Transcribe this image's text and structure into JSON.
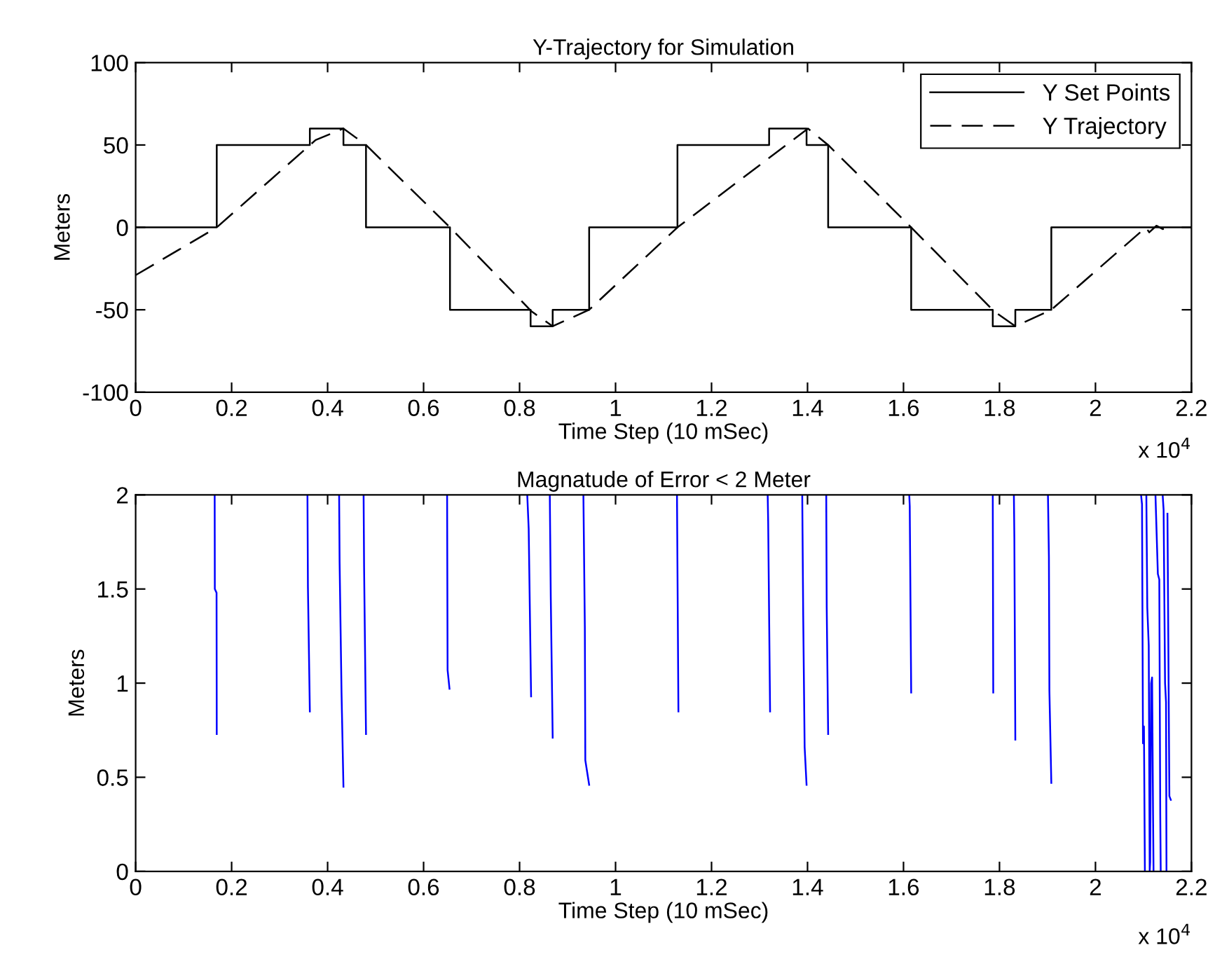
{
  "chart_data": [
    {
      "type": "line",
      "title": "Y-Trajectory for Simulation",
      "xlabel": "Time Step (10 mSec)",
      "ylabel": "Meters",
      "annotations": [
        "x 10$^{4}$"
      ],
      "xlim": [
        0,
        2.2
      ],
      "xticks": [
        0,
        0.2,
        0.4,
        0.6,
        0.8,
        1,
        1.2,
        1.4,
        1.6,
        1.8,
        2,
        2.2
      ],
      "ylim": [
        -100,
        100
      ],
      "yticks": [
        -100,
        -50,
        0,
        50,
        100
      ],
      "grid": false,
      "legend": "top right",
      "marker": "none",
      "series": [
        {
          "name": "Y Set Points",
          "type": "step",
          "color": "#000000",
          "line_style": "solid",
          "x": [
            0,
            0.169,
            0.363,
            0.433,
            0.48,
            0.655,
            0.823,
            0.869,
            0.945,
            1.129,
            1.32,
            1.398,
            1.443,
            1.616,
            1.786,
            1.833,
            1.908,
            2.2
          ],
          "values": [
            0,
            50,
            60,
            50,
            0,
            -50,
            -60,
            -50,
            0,
            50,
            60,
            50,
            0,
            -50,
            -60,
            -50,
            0,
            0
          ]
        },
        {
          "name": "Y Trajectory",
          "type": "line",
          "color": "#000000",
          "line_style": "dashed",
          "x": [
            0,
            0.169,
            0.375,
            0.433,
            0.48,
            0.655,
            0.825,
            0.869,
            0.945,
            1.129,
            1.401,
            1.443,
            1.616,
            1.789,
            1.833,
            1.908,
            2.105,
            2.112,
            2.127,
            2.14,
            2.158
          ],
          "values": [
            -29,
            0,
            53,
            60,
            50,
            0,
            -51,
            -60,
            -50,
            0,
            60,
            50,
            0,
            -51,
            -60,
            -50,
            0,
            -3,
            1,
            -1,
            0
          ]
        }
      ]
    },
    {
      "type": "line",
      "title": "Magnatude of Error < 2 Meter",
      "xlabel": "Time Step (10 mSec)",
      "ylabel": "Meters",
      "annotations": [
        "x 10$^{4}$"
      ],
      "xlim": [
        0,
        2.2
      ],
      "xticks": [
        0,
        0.2,
        0.4,
        0.6,
        0.8,
        1,
        1.2,
        1.4,
        1.6,
        1.8,
        2,
        2.2
      ],
      "ylim": [
        0,
        2
      ],
      "yticks": [
        0,
        0.5,
        1,
        1.5,
        2
      ],
      "grid": false,
      "legend": false,
      "marker": "none",
      "series": [
        {
          "color": "#0000ff",
          "line_style": "solid",
          "x": [
            0.1647,
            0.165,
            0.1686,
            0.169,
            0.17,
            0.358,
            0.359,
            0.363,
            0.364,
            0.424,
            0.425,
            0.429,
            0.433,
            0.434,
            0.475,
            0.476,
            0.48,
            0.481,
            0.649,
            0.65,
            0.654,
            0.655,
            0.816,
            0.819,
            0.824,
            0.825,
            0.863,
            0.865,
            0.869,
            0.87,
            0.933,
            0.936,
            0.937,
            0.945,
            0.946,
            1.128,
            1.131,
            1.132,
            1.317,
            1.318,
            1.322,
            1.323,
            1.389,
            1.391,
            1.394,
            1.398,
            1.399,
            1.439,
            1.44,
            1.443,
            1.444,
            1.612,
            1.613,
            1.616,
            1.617,
            1.786,
            1.787,
            1.788,
            1.83,
            1.831,
            1.833,
            1.834,
            1.901,
            1.903,
            1.904,
            1.908,
            1.909,
            2.095,
            2.097,
            2.099,
            2.101,
            2.103,
            2.104,
            2.106,
            2.108,
            2.111,
            2.113,
            2.114,
            2.116,
            2.118,
            2.12,
            2.121,
            2.122,
            2.125,
            2.13,
            2.133,
            2.135,
            2.136,
            2.137,
            2.14,
            2.142,
            2.145,
            2.147,
            2.148,
            2.149,
            2.15,
            2.154,
            2.157
          ],
          "values": [
            2,
            1.5,
            1.48,
            0.73,
            null,
            2,
            1.51,
            0.85,
            null,
            2,
            1.64,
            0.95,
            0.45,
            null,
            2,
            1.62,
            0.73,
            null,
            2,
            1.07,
            0.97,
            null,
            2,
            1.82,
            0.93,
            null,
            2,
            1.46,
            0.71,
            null,
            2,
            1.3,
            0.59,
            0.46,
            null,
            2,
            0.85,
            null,
            2,
            1.86,
            0.85,
            null,
            2,
            1.36,
            0.66,
            0.46,
            null,
            2,
            1.4,
            0.73,
            null,
            2,
            1.94,
            0.95,
            null,
            2,
            0.95,
            null,
            2,
            1.77,
            0.7,
            null,
            2,
            1.67,
            0.96,
            0.47,
            null,
            2,
            1.95,
            0.68,
            0.77,
            0,
            null,
            2,
            1.4,
            1.2,
            0,
            0.05,
            1,
            1.03,
            0.3,
            0,
            null,
            2,
            1.58,
            1.55,
            0.3,
            0,
            null,
            2,
            1.92,
            1,
            0.9,
            0,
            null,
            1.9,
            0.4,
            0.38
          ]
        }
      ]
    }
  ]
}
